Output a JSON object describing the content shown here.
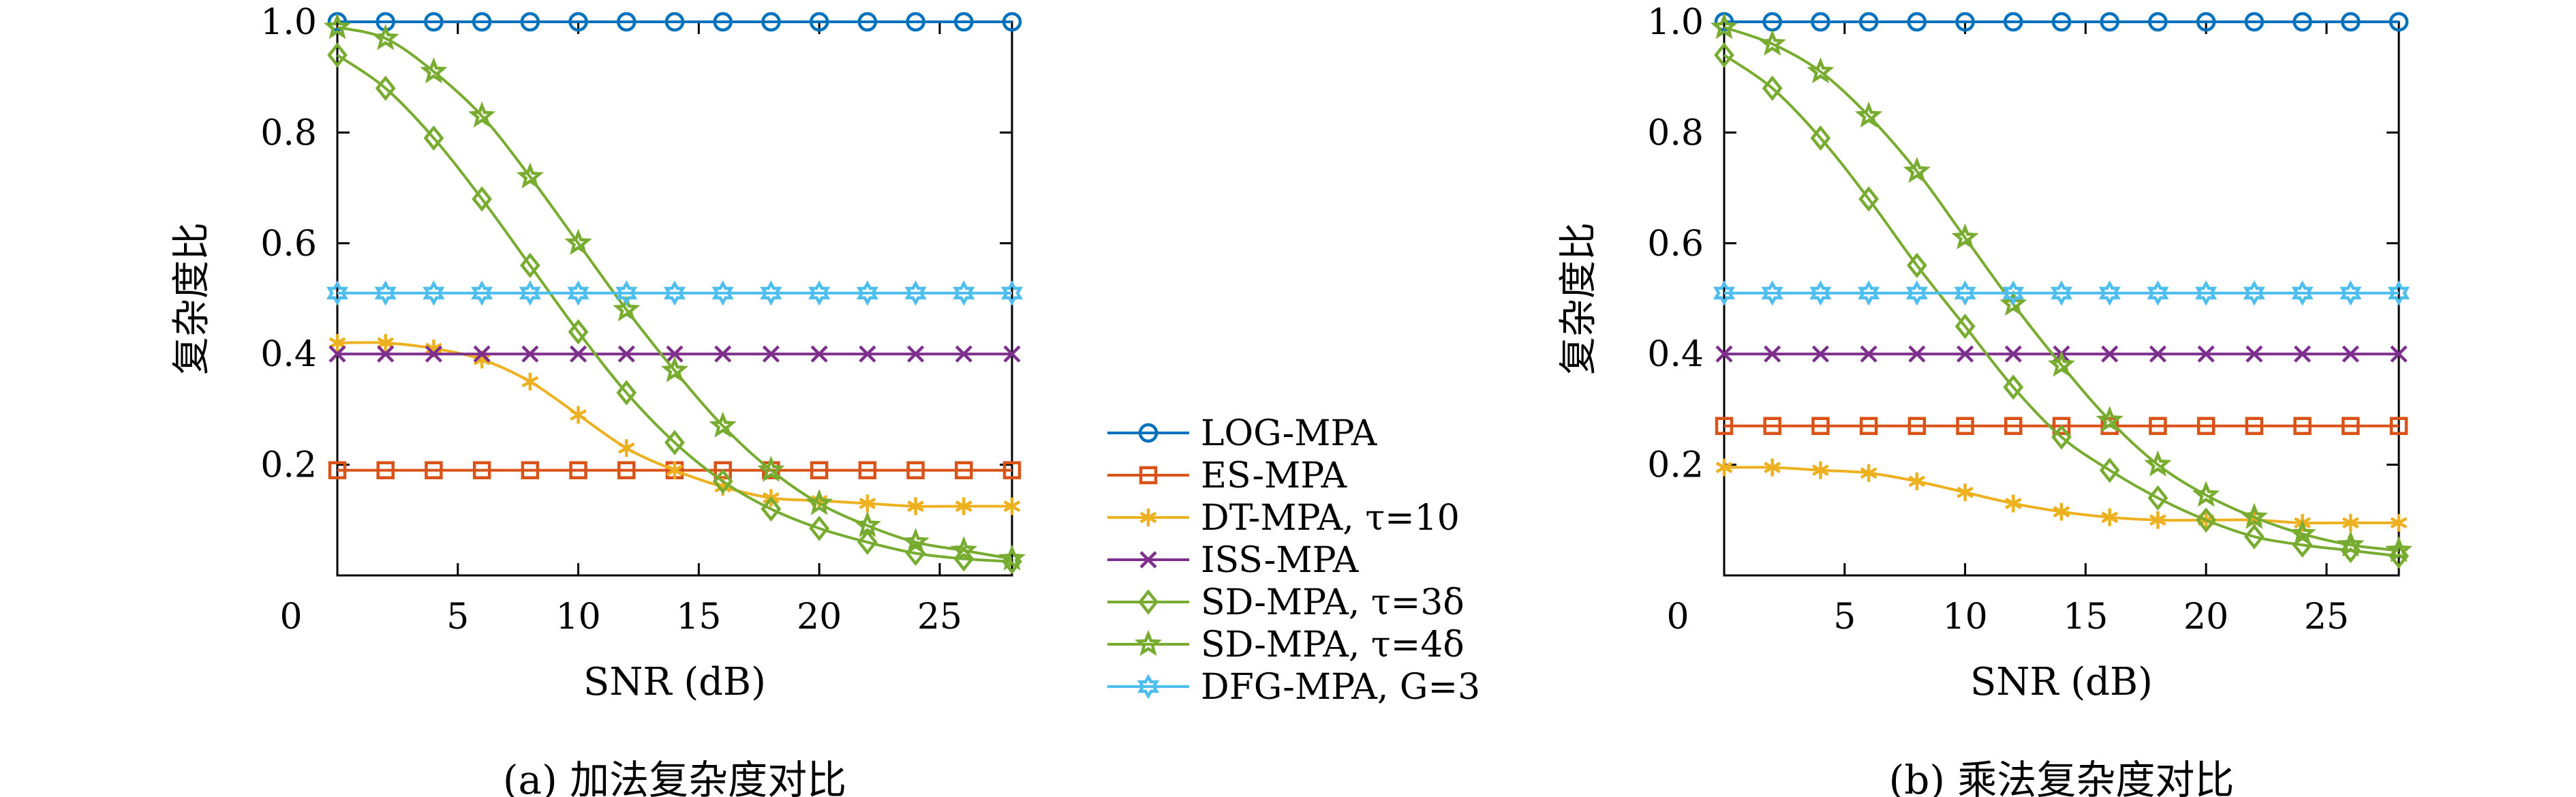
{
  "colors": {
    "LOG-MPA": "#0072bd",
    "ES-MPA": "#d95319",
    "DT-MPA": "#edb120",
    "ISS-MPA": "#7e2f8e",
    "SD-MPA-3": "#77ac30",
    "SD-MPA-4": "#77ac30",
    "DFG-MPA": "#4dbeee"
  },
  "legend": [
    {
      "key": "LOG-MPA",
      "label": "LOG-MPA",
      "marker": "circle"
    },
    {
      "key": "ES-MPA",
      "label": "ES-MPA",
      "marker": "square"
    },
    {
      "key": "DT-MPA",
      "label": "DT-MPA, τ=10",
      "marker": "asterisk"
    },
    {
      "key": "ISS-MPA",
      "label": "ISS-MPA",
      "marker": "x"
    },
    {
      "key": "SD-MPA-3",
      "label": "SD-MPA, τ=3δ",
      "marker": "diamond"
    },
    {
      "key": "SD-MPA-4",
      "label": "SD-MPA, τ=4δ",
      "marker": "pentagram"
    },
    {
      "key": "DFG-MPA",
      "label": "DFG-MPA, G=3",
      "marker": "hexagram"
    }
  ],
  "chart_data": [
    {
      "type": "line",
      "caption": "(a) 加法复杂度对比",
      "xlabel": "SNR (dB)",
      "ylabel": "复杂度比",
      "xlim": [
        0,
        28
      ],
      "ylim": [
        0,
        1.0
      ],
      "xticks": [
        0,
        5,
        10,
        15,
        20,
        25
      ],
      "yticks": [
        0.2,
        0.4,
        0.6,
        0.8,
        1.0
      ],
      "grid": false,
      "x": [
        0,
        2,
        4,
        6,
        8,
        10,
        12,
        14,
        16,
        18,
        20,
        22,
        24,
        26,
        28
      ],
      "series": [
        {
          "key": "LOG-MPA",
          "name": "LOG-MPA",
          "values": [
            1.0,
            1.0,
            1.0,
            1.0,
            1.0,
            1.0,
            1.0,
            1.0,
            1.0,
            1.0,
            1.0,
            1.0,
            1.0,
            1.0,
            1.0
          ]
        },
        {
          "key": "ES-MPA",
          "name": "ES-MPA",
          "values": [
            0.19,
            0.19,
            0.19,
            0.19,
            0.19,
            0.19,
            0.19,
            0.19,
            0.19,
            0.19,
            0.19,
            0.19,
            0.19,
            0.19,
            0.19
          ]
        },
        {
          "key": "DT-MPA",
          "name": "DT-MPA, τ=10",
          "values": [
            0.42,
            0.42,
            0.41,
            0.39,
            0.35,
            0.29,
            0.23,
            0.19,
            0.16,
            0.14,
            0.135,
            0.13,
            0.125,
            0.125,
            0.125
          ]
        },
        {
          "key": "ISS-MPA",
          "name": "ISS-MPA",
          "values": [
            0.4,
            0.4,
            0.4,
            0.4,
            0.4,
            0.4,
            0.4,
            0.4,
            0.4,
            0.4,
            0.4,
            0.4,
            0.4,
            0.4,
            0.4
          ]
        },
        {
          "key": "SD-MPA-3",
          "name": "SD-MPA, τ=3δ",
          "values": [
            0.94,
            0.88,
            0.79,
            0.68,
            0.56,
            0.44,
            0.33,
            0.24,
            0.17,
            0.12,
            0.085,
            0.06,
            0.04,
            0.03,
            0.025
          ]
        },
        {
          "key": "SD-MPA-4",
          "name": "SD-MPA, τ=4δ",
          "values": [
            0.99,
            0.97,
            0.91,
            0.83,
            0.72,
            0.6,
            0.48,
            0.37,
            0.27,
            0.19,
            0.13,
            0.09,
            0.06,
            0.045,
            0.03
          ]
        },
        {
          "key": "DFG-MPA",
          "name": "DFG-MPA, G=3",
          "values": [
            0.51,
            0.51,
            0.51,
            0.51,
            0.51,
            0.51,
            0.51,
            0.51,
            0.51,
            0.51,
            0.51,
            0.51,
            0.51,
            0.51,
            0.51
          ]
        }
      ]
    },
    {
      "type": "line",
      "caption": "(b) 乘法复杂度对比",
      "xlabel": "SNR (dB)",
      "ylabel": "复杂度比",
      "xlim": [
        0,
        28
      ],
      "ylim": [
        0,
        1.0
      ],
      "xticks": [
        0,
        5,
        10,
        15,
        20,
        25
      ],
      "yticks": [
        0.2,
        0.4,
        0.6,
        0.8,
        1.0
      ],
      "grid": false,
      "x": [
        0,
        2,
        4,
        6,
        8,
        10,
        12,
        14,
        16,
        18,
        20,
        22,
        24,
        26,
        28
      ],
      "series": [
        {
          "key": "LOG-MPA",
          "name": "LOG-MPA",
          "values": [
            1.0,
            1.0,
            1.0,
            1.0,
            1.0,
            1.0,
            1.0,
            1.0,
            1.0,
            1.0,
            1.0,
            1.0,
            1.0,
            1.0,
            1.0
          ]
        },
        {
          "key": "ES-MPA",
          "name": "ES-MPA",
          "values": [
            0.27,
            0.27,
            0.27,
            0.27,
            0.27,
            0.27,
            0.27,
            0.27,
            0.27,
            0.27,
            0.27,
            0.27,
            0.27,
            0.27,
            0.27
          ]
        },
        {
          "key": "DT-MPA",
          "name": "DT-MPA, τ=10",
          "values": [
            0.195,
            0.195,
            0.19,
            0.185,
            0.17,
            0.15,
            0.13,
            0.115,
            0.105,
            0.1,
            0.1,
            0.1,
            0.095,
            0.095,
            0.095
          ]
        },
        {
          "key": "ISS-MPA",
          "name": "ISS-MPA",
          "values": [
            0.4,
            0.4,
            0.4,
            0.4,
            0.4,
            0.4,
            0.4,
            0.4,
            0.4,
            0.4,
            0.4,
            0.4,
            0.4,
            0.4,
            0.4
          ]
        },
        {
          "key": "SD-MPA-3",
          "name": "SD-MPA, τ=3δ",
          "values": [
            0.94,
            0.88,
            0.79,
            0.68,
            0.56,
            0.45,
            0.34,
            0.25,
            0.19,
            0.14,
            0.1,
            0.07,
            0.055,
            0.045,
            0.035
          ]
        },
        {
          "key": "SD-MPA-4",
          "name": "SD-MPA, τ=4δ",
          "values": [
            0.99,
            0.96,
            0.91,
            0.83,
            0.73,
            0.61,
            0.49,
            0.38,
            0.28,
            0.2,
            0.145,
            0.105,
            0.075,
            0.055,
            0.045
          ]
        },
        {
          "key": "DFG-MPA",
          "name": "DFG-MPA, G=3",
          "values": [
            0.51,
            0.51,
            0.51,
            0.51,
            0.51,
            0.51,
            0.51,
            0.51,
            0.51,
            0.51,
            0.51,
            0.51,
            0.51,
            0.51,
            0.51
          ]
        }
      ]
    }
  ]
}
